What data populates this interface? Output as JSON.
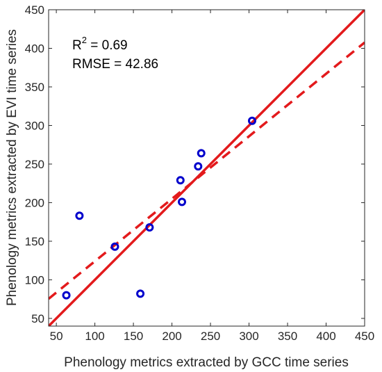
{
  "chart_data": {
    "type": "scatter",
    "xlabel": "Phenology metrics extracted by GCC time series",
    "ylabel": "Phenology metrics extracted by EVI time series",
    "xlim": [
      40,
      450
    ],
    "ylim": [
      40,
      450
    ],
    "xticks": [
      50,
      100,
      150,
      200,
      250,
      300,
      350,
      400,
      450
    ],
    "yticks": [
      50,
      100,
      150,
      200,
      250,
      300,
      350,
      400,
      450
    ],
    "grid": false,
    "points": [
      {
        "x": 63,
        "y": 80
      },
      {
        "x": 80,
        "y": 183
      },
      {
        "x": 126,
        "y": 143
      },
      {
        "x": 159,
        "y": 82
      },
      {
        "x": 171,
        "y": 168
      },
      {
        "x": 211,
        "y": 229
      },
      {
        "x": 213,
        "y": 201
      },
      {
        "x": 234,
        "y": 247
      },
      {
        "x": 238,
        "y": 264
      },
      {
        "x": 304,
        "y": 306
      }
    ],
    "lines": [
      {
        "kind": "1:1 line",
        "style": "solid",
        "slope": 1,
        "intercept": 0
      },
      {
        "kind": "fit",
        "style": "dashed",
        "slope": 0.81,
        "intercept": 43
      }
    ],
    "annotations": {
      "r2_prefix": "R",
      "r2_sup": "2",
      "r2_value": " = 0.69",
      "rmse": "RMSE = 42.86"
    },
    "colors": {
      "points": "#0000cc",
      "lines": "#e31a1c",
      "axes": "#262626"
    }
  }
}
